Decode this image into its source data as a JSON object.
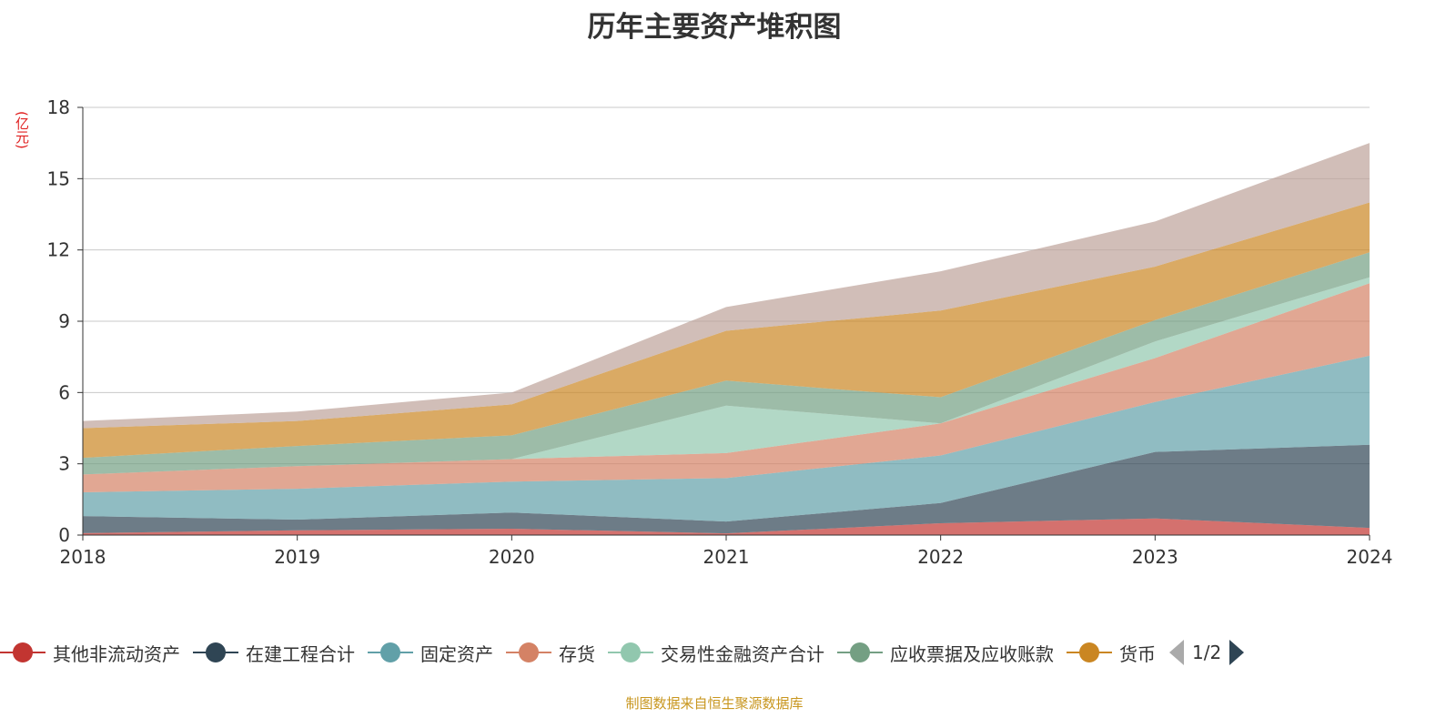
{
  "title": "历年主要资产堆积图",
  "unit": "(亿元)",
  "footer": "制图数据来自恒生聚源数据库",
  "legend_page": "1/2",
  "chart_data": {
    "type": "area",
    "stacked": true,
    "title": "历年主要资产堆积图",
    "ylabel": "(亿元)",
    "x": [
      "2018",
      "2019",
      "2020",
      "2021",
      "2022",
      "2023",
      "2024"
    ],
    "ylim": [
      0,
      18
    ],
    "yticks": [
      0,
      3,
      6,
      9,
      12,
      15,
      18
    ],
    "grid": true,
    "legend": "bottom",
    "series": [
      {
        "name": "其他非流动资产",
        "color": "#c23531",
        "values": [
          0.08,
          0.2,
          0.27,
          0.07,
          0.5,
          0.7,
          0.3
        ]
      },
      {
        "name": "在建工程合计",
        "color": "#2f4554",
        "values": [
          0.72,
          0.45,
          0.68,
          0.5,
          0.85,
          2.8,
          3.5
        ]
      },
      {
        "name": "固定资产",
        "color": "#61a0a8",
        "values": [
          1.0,
          1.3,
          1.3,
          1.83,
          2.0,
          2.1,
          3.75
        ]
      },
      {
        "name": "存货",
        "color": "#d48265",
        "values": [
          0.75,
          0.95,
          0.95,
          1.05,
          1.35,
          1.85,
          3.05
        ]
      },
      {
        "name": "交易性金融资产合计",
        "color": "#91c7ae",
        "values": [
          0,
          0,
          0,
          2.0,
          0,
          0.7,
          0.25
        ]
      },
      {
        "name": "应收票据及应收账款",
        "color": "#749f83",
        "values": [
          0.7,
          0.85,
          1.0,
          1.05,
          1.1,
          0.9,
          1.05
        ]
      },
      {
        "name": "货币",
        "color": "#ca8622",
        "values": [
          1.25,
          1.05,
          1.3,
          2.1,
          3.65,
          2.25,
          2.1
        ]
      },
      {
        "color": "#bda29a",
        "values": [
          0.3,
          0.4,
          0.5,
          1.0,
          1.65,
          1.9,
          2.5
        ]
      }
    ]
  }
}
